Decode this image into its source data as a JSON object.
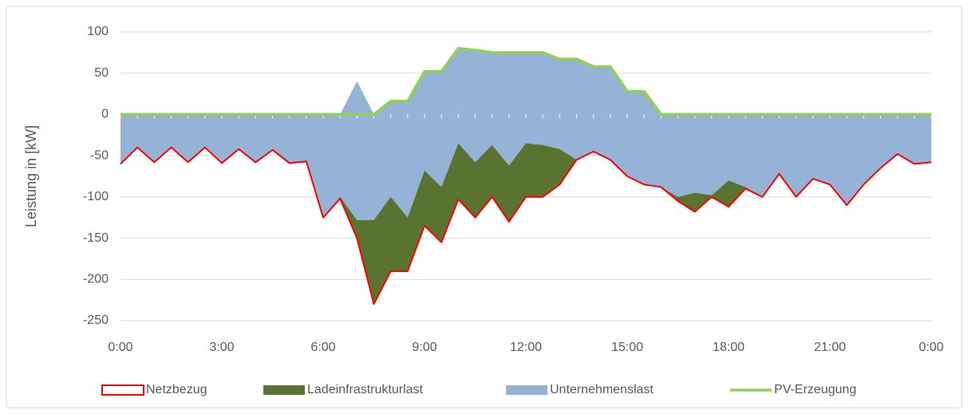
{
  "chart_data": {
    "type": "area",
    "y_label": "Leistung in [kW]",
    "x": [
      0,
      0.5,
      1,
      1.5,
      2,
      2.5,
      3,
      3.5,
      4,
      4.5,
      5,
      5.5,
      6,
      6.5,
      7,
      7.5,
      8,
      8.5,
      9,
      9.5,
      10,
      10.5,
      11,
      11.5,
      12,
      12.5,
      13,
      13.5,
      14,
      14.5,
      15,
      15.5,
      16,
      16.5,
      17,
      17.5,
      18,
      18.5,
      19,
      19.5,
      20,
      20.5,
      21,
      21.5,
      22,
      22.5,
      23,
      23.5,
      24
    ],
    "xlim": [
      0,
      24
    ],
    "xticks": [
      {
        "value": 0,
        "label": "0:00"
      },
      {
        "value": 3,
        "label": "3:00"
      },
      {
        "value": 6,
        "label": "6:00"
      },
      {
        "value": 9,
        "label": "9:00"
      },
      {
        "value": 12,
        "label": "12:00"
      },
      {
        "value": 15,
        "label": "15:00"
      },
      {
        "value": 18,
        "label": "18:00"
      },
      {
        "value": 21,
        "label": "21:00"
      },
      {
        "value": 24,
        "label": "0:00"
      }
    ],
    "ylim": [
      -250,
      100
    ],
    "yticks": [
      -250,
      -200,
      -150,
      -100,
      -50,
      0,
      50,
      100
    ],
    "grid": true,
    "legend": "bottom",
    "series": [
      {
        "name": "Netzbezug",
        "kind": "outline",
        "color": "#ff0000",
        "values": [
          -60,
          -40,
          -58,
          -40,
          -58,
          -40,
          -59,
          -42,
          -58,
          -43,
          -59,
          -57,
          -125,
          -102,
          -150,
          -230,
          -190,
          -190,
          -135,
          -155,
          -103,
          -125,
          -100,
          -130,
          -100,
          -100,
          -85,
          -55,
          -45,
          -55,
          -75,
          -85,
          -88,
          -105,
          -118,
          -100,
          -112,
          -90,
          -100,
          -72,
          -100,
          -78,
          -85,
          -110,
          -85,
          -65,
          -48,
          -60,
          -58
        ]
      },
      {
        "name": "Ladeinfrastrukturlast",
        "kind": "area",
        "color": "#5b7330",
        "stacked_on": "Unternehmenslast",
        "values": [
          0,
          0,
          0,
          0,
          0,
          0,
          0,
          0,
          0,
          0,
          0,
          0,
          0,
          -2,
          -22,
          -102,
          -90,
          -65,
          -67,
          -67,
          -68,
          -67,
          -63,
          -68,
          -65,
          -63,
          -43,
          0,
          0,
          0,
          0,
          0,
          0,
          -5,
          -23,
          -2,
          -32,
          -2,
          0,
          0,
          0,
          0,
          0,
          0,
          0,
          0,
          0,
          0,
          0
        ]
      },
      {
        "name": "Unternehmenslast",
        "kind": "area",
        "color": "#95b3d7",
        "values": [
          -60,
          -40,
          -58,
          -40,
          -58,
          -40,
          -59,
          -42,
          -58,
          -43,
          -59,
          -57,
          -125,
          -100,
          -128,
          -128,
          -100,
          -125,
          -68,
          -88,
          -35,
          -58,
          -37,
          -62,
          -35,
          -37,
          -42,
          -55,
          -45,
          -55,
          -75,
          -85,
          -88,
          -100,
          -95,
          -98,
          -80,
          -88,
          -100,
          -72,
          -100,
          -78,
          -85,
          -110,
          -85,
          -65,
          -48,
          -60,
          -58
        ]
      },
      {
        "name": "PV-Erzeugung",
        "kind": "line",
        "color": "#92d050",
        "values": [
          0,
          0,
          0,
          0,
          0,
          0,
          0,
          0,
          0,
          0,
          0,
          0,
          0,
          0,
          0,
          0,
          16,
          16,
          52,
          52,
          80,
          78,
          75,
          75,
          75,
          75,
          67,
          67,
          58,
          58,
          28,
          28,
          0,
          0,
          0,
          0,
          0,
          0,
          0,
          0,
          0,
          0,
          0,
          0,
          0,
          0,
          0,
          0,
          0
        ]
      },
      {
        "name": "Unternehmenslast",
        "kind": "area",
        "color": "#95b3d7",
        "legend": false,
        "values": [
          0,
          0,
          0,
          0,
          0,
          0,
          0,
          0,
          0,
          0,
          0,
          0,
          0,
          0,
          40,
          0,
          16,
          16,
          52,
          52,
          80,
          78,
          75,
          75,
          75,
          75,
          67,
          67,
          58,
          58,
          28,
          28,
          0,
          0,
          0,
          0,
          0,
          0,
          0,
          0,
          0,
          0,
          0,
          0,
          0,
          0,
          0,
          0,
          0
        ]
      }
    ]
  }
}
